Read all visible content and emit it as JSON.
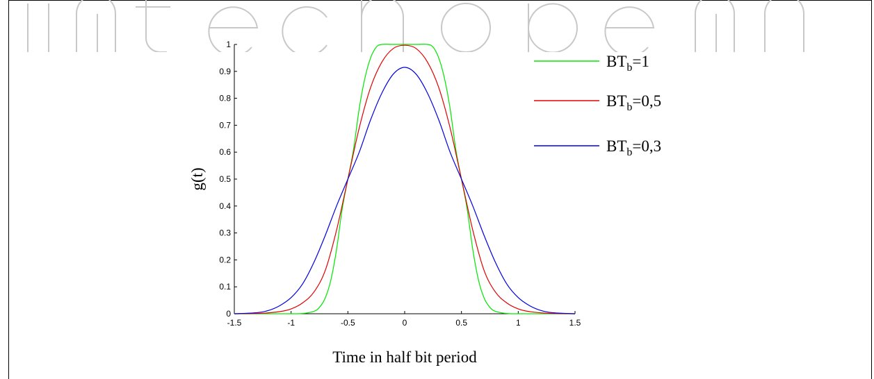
{
  "colors": {
    "bt1": "#00e600",
    "bt05": "#e00000",
    "bt03": "#0000e0",
    "axis": "#000000",
    "watermark": "#c8c8c8"
  },
  "chart_data": {
    "type": "line",
    "xlabel": "Time in half bit period",
    "ylabel": "g(t)",
    "xlim": [
      -1.5,
      1.5
    ],
    "ylim": [
      0,
      1
    ],
    "xticks": [
      "-1.5",
      "-1",
      "-0.5",
      "0",
      "0.5",
      "1",
      "1.5"
    ],
    "yticks": [
      "0",
      "0.1",
      "0.2",
      "0.3",
      "0.4",
      "0.5",
      "0.6",
      "0.7",
      "0.8",
      "0.9",
      "1"
    ],
    "grid": false,
    "legend_position": "top-right",
    "series": [
      {
        "name_main": "BT",
        "name_sub": "b",
        "name_tail": "=1",
        "color": "#00e600",
        "x": [
          -1.5,
          -1.25,
          -1.0,
          -0.9,
          -0.8,
          -0.75,
          -0.7,
          -0.65,
          -0.6,
          -0.55,
          -0.5,
          -0.45,
          -0.4,
          -0.35,
          -0.3,
          -0.25,
          -0.2,
          -0.1,
          0.0,
          0.1,
          0.2,
          0.25,
          0.3,
          0.35,
          0.4,
          0.45,
          0.5,
          0.55,
          0.6,
          0.65,
          0.7,
          0.75,
          0.8,
          0.9,
          1.0,
          1.25,
          1.5
        ],
        "y": [
          0.0,
          0.0,
          0.0,
          0.001,
          0.009,
          0.024,
          0.058,
          0.125,
          0.238,
          0.389,
          0.5,
          0.611,
          0.762,
          0.875,
          0.95,
          0.99,
          1.0,
          1.0,
          1.0,
          1.0,
          1.0,
          0.99,
          0.95,
          0.875,
          0.762,
          0.611,
          0.5,
          0.389,
          0.238,
          0.125,
          0.058,
          0.024,
          0.009,
          0.001,
          0.0,
          0.0,
          0.0
        ]
      },
      {
        "name_main": "BT",
        "name_sub": "b",
        "name_tail": "=0,5",
        "color": "#e00000",
        "x": [
          -1.5,
          -1.25,
          -1.1,
          -1.0,
          -0.9,
          -0.8,
          -0.7,
          -0.6,
          -0.5,
          -0.4,
          -0.3,
          -0.2,
          -0.1,
          0.0,
          0.1,
          0.2,
          0.3,
          0.4,
          0.5,
          0.6,
          0.7,
          0.8,
          0.9,
          1.0,
          1.1,
          1.25,
          1.5
        ],
        "y": [
          0.0,
          0.002,
          0.008,
          0.018,
          0.04,
          0.08,
          0.16,
          0.31,
          0.5,
          0.69,
          0.84,
          0.935,
          0.985,
          0.997,
          0.985,
          0.935,
          0.84,
          0.69,
          0.5,
          0.31,
          0.16,
          0.08,
          0.04,
          0.018,
          0.008,
          0.002,
          0.0
        ]
      },
      {
        "name_main": "BT",
        "name_sub": "b",
        "name_tail": "=0,3",
        "color": "#0000e0",
        "x": [
          -1.5,
          -1.3,
          -1.2,
          -1.1,
          -1.0,
          -0.9,
          -0.8,
          -0.7,
          -0.6,
          -0.5,
          -0.4,
          -0.3,
          -0.2,
          -0.1,
          0.0,
          0.1,
          0.2,
          0.3,
          0.4,
          0.5,
          0.6,
          0.7,
          0.8,
          0.9,
          1.0,
          1.1,
          1.2,
          1.3,
          1.5
        ],
        "y": [
          0.0,
          0.004,
          0.012,
          0.03,
          0.06,
          0.11,
          0.19,
          0.29,
          0.4,
          0.5,
          0.6,
          0.72,
          0.82,
          0.89,
          0.915,
          0.89,
          0.82,
          0.72,
          0.6,
          0.5,
          0.4,
          0.29,
          0.19,
          0.11,
          0.06,
          0.03,
          0.012,
          0.004,
          0.0
        ]
      }
    ]
  }
}
